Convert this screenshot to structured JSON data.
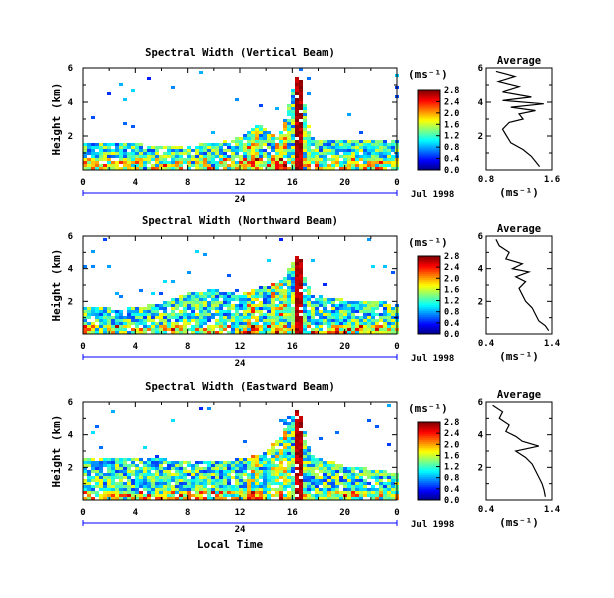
{
  "figure": {
    "xlabel": "Local Time",
    "ylabel": "Height (km)",
    "date_label": "Jul 1998",
    "day_label": "24",
    "avg_title": "Average",
    "unit": "(ms⁻¹)"
  },
  "chart_data": [
    {
      "type": "heatmap",
      "title": "Spectral Width (Vertical Beam)",
      "xlabel": "Local Time",
      "ylabel": "Height (km)",
      "xlim": [
        0,
        24
      ],
      "ylim": [
        0,
        6
      ],
      "x_ticks": [
        "0",
        "4",
        "8",
        "12",
        "16",
        "20",
        "0"
      ],
      "y_ticks": [
        "2",
        "4",
        "6"
      ],
      "colorbar": {
        "label": "(ms⁻¹)",
        "range": [
          0.0,
          2.8
        ],
        "ticks": [
          "0.0",
          "0.4",
          "0.8",
          "1.2",
          "1.6",
          "2.0",
          "2.4",
          "2.8"
        ]
      },
      "data_top_km": [
        {
          "x": 0.3,
          "top": 1.6
        },
        {
          "x": 4,
          "top": 1.6
        },
        {
          "x": 8,
          "top": 1.5
        },
        {
          "x": 10,
          "top": 1.7
        },
        {
          "x": 12,
          "top": 2.0
        },
        {
          "x": 13.5,
          "top": 2.8
        },
        {
          "x": 15,
          "top": 2.0
        },
        {
          "x": 16.5,
          "top": 6.0
        },
        {
          "x": 17.5,
          "top": 1.8
        },
        {
          "x": 20,
          "top": 1.8
        },
        {
          "x": 23.5,
          "top": 1.8
        }
      ],
      "average_profile": {
        "xlim": [
          0.8,
          1.6
        ],
        "x_ticks": [
          "0.8",
          "1.6"
        ],
        "y_ticks": [
          "2",
          "4",
          "6"
        ],
        "points": [
          [
            1.45,
            0.2
          ],
          [
            1.4,
            0.5
          ],
          [
            1.35,
            0.8
          ],
          [
            1.25,
            1.2
          ],
          [
            1.1,
            1.6
          ],
          [
            1.05,
            2.0
          ],
          [
            1.0,
            2.4
          ],
          [
            1.08,
            2.8
          ],
          [
            1.25,
            3.0
          ],
          [
            1.2,
            3.3
          ],
          [
            1.4,
            3.5
          ],
          [
            1.1,
            3.7
          ],
          [
            1.5,
            3.9
          ],
          [
            1.0,
            4.1
          ],
          [
            1.35,
            4.3
          ],
          [
            1.0,
            4.6
          ],
          [
            1.2,
            4.9
          ],
          [
            0.95,
            5.2
          ],
          [
            1.15,
            5.5
          ],
          [
            0.92,
            5.8
          ]
        ]
      }
    },
    {
      "type": "heatmap",
      "title": "Spectral Width (Northward Beam)",
      "xlabel": "Local Time",
      "ylabel": "Height (km)",
      "xlim": [
        0,
        24
      ],
      "ylim": [
        0,
        6
      ],
      "x_ticks": [
        "0",
        "4",
        "8",
        "12",
        "16",
        "20",
        "0"
      ],
      "y_ticks": [
        "2",
        "4",
        "6"
      ],
      "colorbar": {
        "label": "(ms⁻¹)",
        "range": [
          0.0,
          2.8
        ],
        "ticks": [
          "0.0",
          "0.4",
          "0.8",
          "1.2",
          "1.6",
          "2.0",
          "2.4",
          "2.8"
        ]
      },
      "data_top_km": [
        {
          "x": 0.3,
          "top": 1.8
        },
        {
          "x": 3,
          "top": 1.6
        },
        {
          "x": 6,
          "top": 2.0
        },
        {
          "x": 8,
          "top": 2.6
        },
        {
          "x": 10,
          "top": 2.8
        },
        {
          "x": 12,
          "top": 2.5
        },
        {
          "x": 13.5,
          "top": 3.0
        },
        {
          "x": 15,
          "top": 3.2
        },
        {
          "x": 16.5,
          "top": 5.0
        },
        {
          "x": 17.5,
          "top": 2.5
        },
        {
          "x": 20,
          "top": 2.2
        },
        {
          "x": 23.5,
          "top": 2.0
        }
      ],
      "average_profile": {
        "xlim": [
          0.4,
          1.4
        ],
        "x_ticks": [
          "0.4",
          "1.4"
        ],
        "y_ticks": [
          "2",
          "4",
          "6"
        ],
        "points": [
          [
            1.35,
            0.2
          ],
          [
            1.3,
            0.5
          ],
          [
            1.2,
            0.8
          ],
          [
            1.15,
            1.2
          ],
          [
            1.1,
            1.6
          ],
          [
            1.0,
            2.0
          ],
          [
            0.95,
            2.4
          ],
          [
            0.9,
            2.8
          ],
          [
            1.0,
            3.2
          ],
          [
            0.85,
            3.5
          ],
          [
            1.05,
            3.8
          ],
          [
            0.8,
            4.0
          ],
          [
            0.95,
            4.3
          ],
          [
            0.7,
            4.6
          ],
          [
            0.75,
            5.0
          ],
          [
            0.6,
            5.4
          ],
          [
            0.55,
            5.8
          ]
        ]
      }
    },
    {
      "type": "heatmap",
      "title": "Spectral Width (Eastward Beam)",
      "xlabel": "Local Time",
      "ylabel": "Height (km)",
      "xlim": [
        0,
        24
      ],
      "ylim": [
        0,
        6
      ],
      "x_ticks": [
        "0",
        "4",
        "8",
        "12",
        "16",
        "20",
        "0"
      ],
      "y_ticks": [
        "2",
        "4",
        "6"
      ],
      "colorbar": {
        "label": "(ms⁻¹)",
        "range": [
          0.0,
          2.8
        ],
        "ticks": [
          "0.0",
          "0.4",
          "0.8",
          "1.2",
          "1.6",
          "2.0",
          "2.4",
          "2.8"
        ]
      },
      "data_top_km": [
        {
          "x": 0.3,
          "top": 2.6
        },
        {
          "x": 3,
          "top": 2.6
        },
        {
          "x": 6,
          "top": 2.6
        },
        {
          "x": 8,
          "top": 2.4
        },
        {
          "x": 10,
          "top": 2.4
        },
        {
          "x": 12,
          "top": 2.6
        },
        {
          "x": 14,
          "top": 3.0
        },
        {
          "x": 15.5,
          "top": 4.5
        },
        {
          "x": 16.5,
          "top": 5.8
        },
        {
          "x": 17.5,
          "top": 2.8
        },
        {
          "x": 20,
          "top": 2.2
        },
        {
          "x": 23.5,
          "top": 1.8
        }
      ],
      "average_profile": {
        "xlim": [
          0.4,
          1.4
        ],
        "x_ticks": [
          "0.4",
          "1.4"
        ],
        "y_ticks": [
          "2",
          "4",
          "6"
        ],
        "points": [
          [
            1.3,
            0.2
          ],
          [
            1.28,
            0.6
          ],
          [
            1.25,
            1.0
          ],
          [
            1.2,
            1.4
          ],
          [
            1.15,
            1.8
          ],
          [
            1.1,
            2.2
          ],
          [
            1.0,
            2.6
          ],
          [
            0.85,
            3.0
          ],
          [
            1.2,
            3.3
          ],
          [
            0.95,
            3.6
          ],
          [
            0.85,
            3.9
          ],
          [
            0.7,
            4.2
          ],
          [
            0.75,
            4.6
          ],
          [
            0.6,
            5.0
          ],
          [
            0.65,
            5.4
          ],
          [
            0.5,
            5.8
          ]
        ]
      }
    }
  ]
}
